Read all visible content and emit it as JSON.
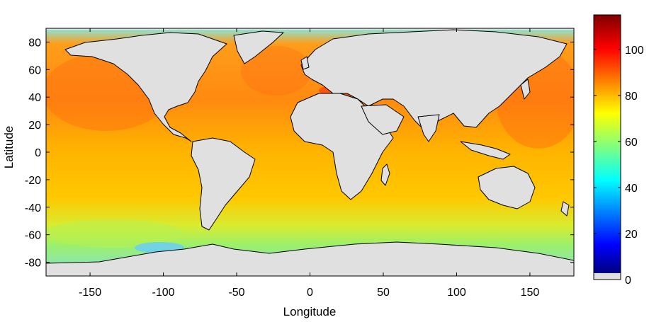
{
  "chart_data": {
    "type": "heatmap",
    "title": "",
    "xlabel": "Longitude",
    "ylabel": "Latitude",
    "xlim": [
      -180,
      180
    ],
    "ylim": [
      -90,
      90
    ],
    "x_ticks": [
      -150,
      -100,
      -50,
      0,
      50,
      100,
      150
    ],
    "y_ticks": [
      80,
      60,
      40,
      20,
      0,
      -20,
      -40,
      -60,
      -80
    ],
    "colorbar": {
      "ticks": [
        0,
        20,
        40,
        60,
        80,
        100
      ],
      "range": [
        0,
        115
      ],
      "colormap": "jet",
      "position": "right"
    },
    "ocean_value_range": [
      40,
      100
    ],
    "land_color": "#e0e0e0",
    "grid": false
  },
  "labels": {
    "xlabel": "Longitude",
    "ylabel": "Latitude"
  }
}
